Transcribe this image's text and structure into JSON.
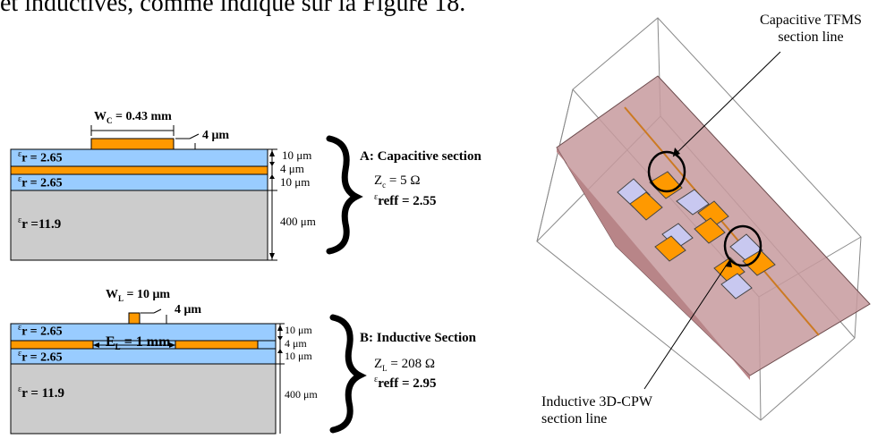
{
  "top_text": "et inductives, comme indiqué sur la Figure 18.",
  "capacitive": {
    "width_label": "W",
    "width_sub": "C",
    "width_value": "= 0.43 mm",
    "metal_thickness": "4 μm",
    "layer1_eps": "r = 2.65",
    "layer2_eps": "r = 2.65",
    "substrate_eps": "r =11.9",
    "dim_10a": "10 μm",
    "dim_4": "4 μm",
    "dim_10b": "10 μm",
    "dim_400": "400 μm",
    "section_title": "A: Capacitive section",
    "z_label": "Z",
    "z_sub": "c",
    "z_value": "= 5 Ω",
    "eff_label": "reff = 2.55"
  },
  "inductive": {
    "width_label": "W",
    "width_sub": "L",
    "width_value": "= 10 μm",
    "metal_thickness": "4 μm",
    "layer1_eps": "r = 2.65",
    "layer2_eps": "r = 2.65",
    "substrate_eps": "r = 11.9",
    "gap_label": "E",
    "gap_sub": "L",
    "gap_value": "= 1 mm",
    "dim_10a": "10 μm",
    "dim_4": "4 μm",
    "dim_10b": "10 μm",
    "dim_400": "400 μm",
    "section_title": "B: Inductive Section",
    "z_label": "Z",
    "z_sub": "L",
    "z_value": "= 208 Ω",
    "eff_label": "reff = 2.95"
  },
  "callouts": {
    "capacitive_line1": "Capacitive TFMS",
    "capacitive_line2": "section line",
    "inductive_line1": "Inductive 3D-CPW",
    "inductive_line2": "section line"
  },
  "epsilon_symbol": "ε",
  "colors": {
    "blue_layer": "#99ccff",
    "gray_substrate": "#cccccc",
    "orange_metal": "#ff9900",
    "pink_plane": "#c79a9d",
    "lavender_pad": "#c8c8f0"
  }
}
